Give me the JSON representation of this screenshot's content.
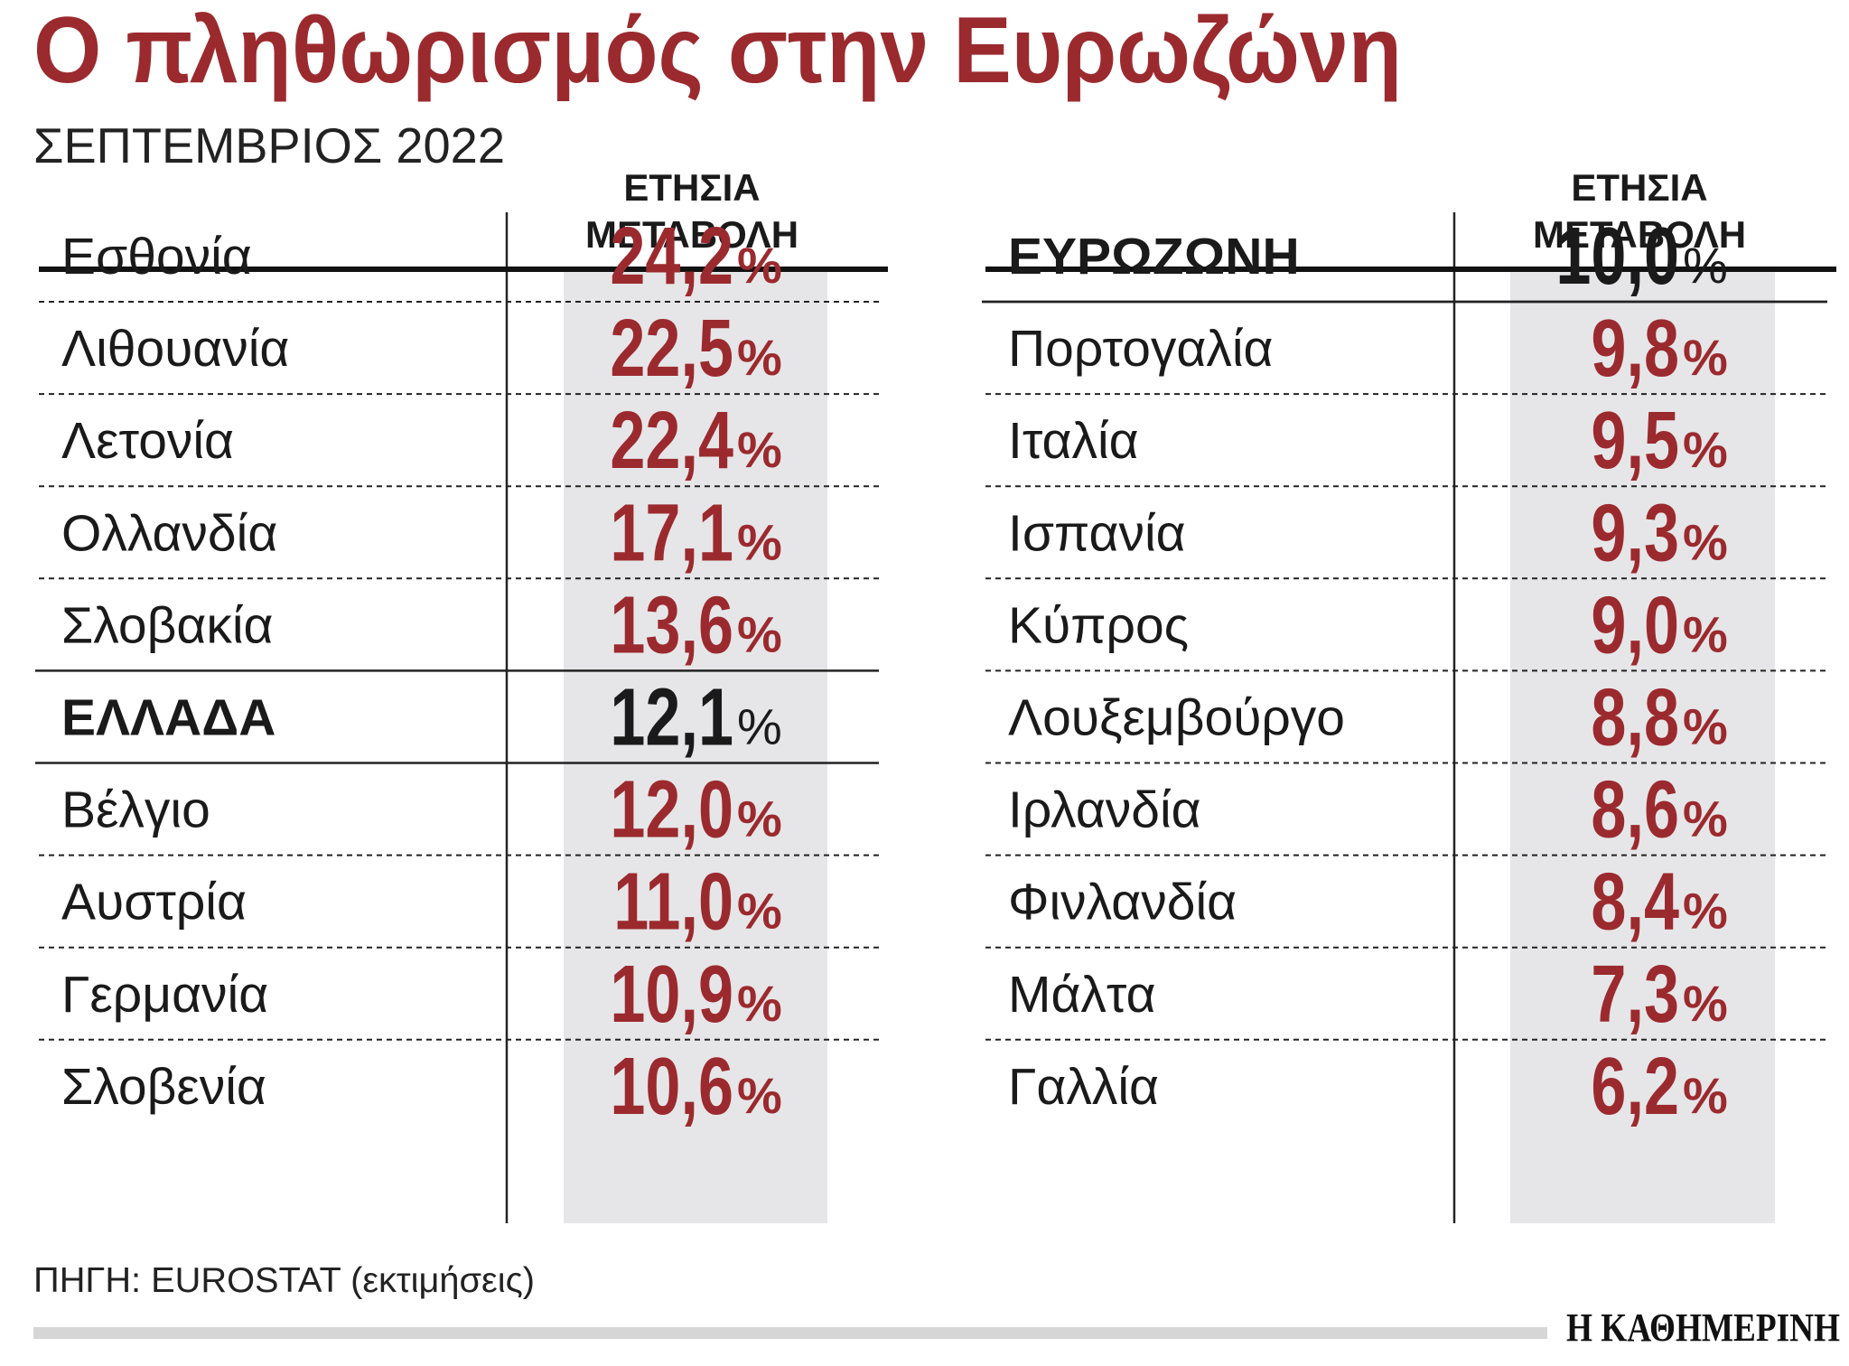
{
  "title": "Ο πληθωρισμός στην Ευρωζώνη",
  "subtitle": "ΣΕΠΤΕΜΒΡΙΟΣ 2022",
  "unit": "%",
  "tables": [
    {
      "header": [
        "ΕΤΗΣΙΑ",
        "ΜΕΤΑΒΟΛΗ"
      ],
      "rows": [
        {
          "name": "Εσθονία",
          "value": "24,2"
        },
        {
          "name": "Λιθουανία",
          "value": "22,5"
        },
        {
          "name": "Λετονία",
          "value": "22,4"
        },
        {
          "name": "Ολλανδία",
          "value": "17,1"
        },
        {
          "name": "Σλοβακία",
          "value": "13,6"
        },
        {
          "name": "ΕΛΛΑΔΑ",
          "value": "12,1",
          "bold": true
        },
        {
          "name": "Βέλγιο",
          "value": "12,0"
        },
        {
          "name": "Αυστρία",
          "value": "11,0"
        },
        {
          "name": "Γερμανία",
          "value": "10,9"
        },
        {
          "name": "Σλοβενία",
          "value": "10,6"
        }
      ]
    },
    {
      "header": [
        "ΕΤΗΣΙΑ",
        "ΜΕΤΑΒΟΛΗ"
      ],
      "rows": [
        {
          "name": "ΕΥΡΩΖΩΝΗ",
          "value": "10,0",
          "bold": true
        },
        {
          "name": "Πορτογαλία",
          "value": "9,8"
        },
        {
          "name": "Ιταλία",
          "value": "9,5"
        },
        {
          "name": "Ισπανία",
          "value": "9,3"
        },
        {
          "name": "Κύπρος",
          "value": "9,0"
        },
        {
          "name": "Λουξεμβούργο",
          "value": "8,8"
        },
        {
          "name": "Ιρλανδία",
          "value": "8,6"
        },
        {
          "name": "Φινλανδία",
          "value": "8,4"
        },
        {
          "name": "Μάλτα",
          "value": "7,3"
        },
        {
          "name": "Γαλλία",
          "value": "6,2"
        }
      ]
    }
  ],
  "source": "ΠΗΓΗ: EUROSTAT (εκτιμήσεις)",
  "brand": "Η ΚΑΘΗΜΕΡΙΝΗ"
}
